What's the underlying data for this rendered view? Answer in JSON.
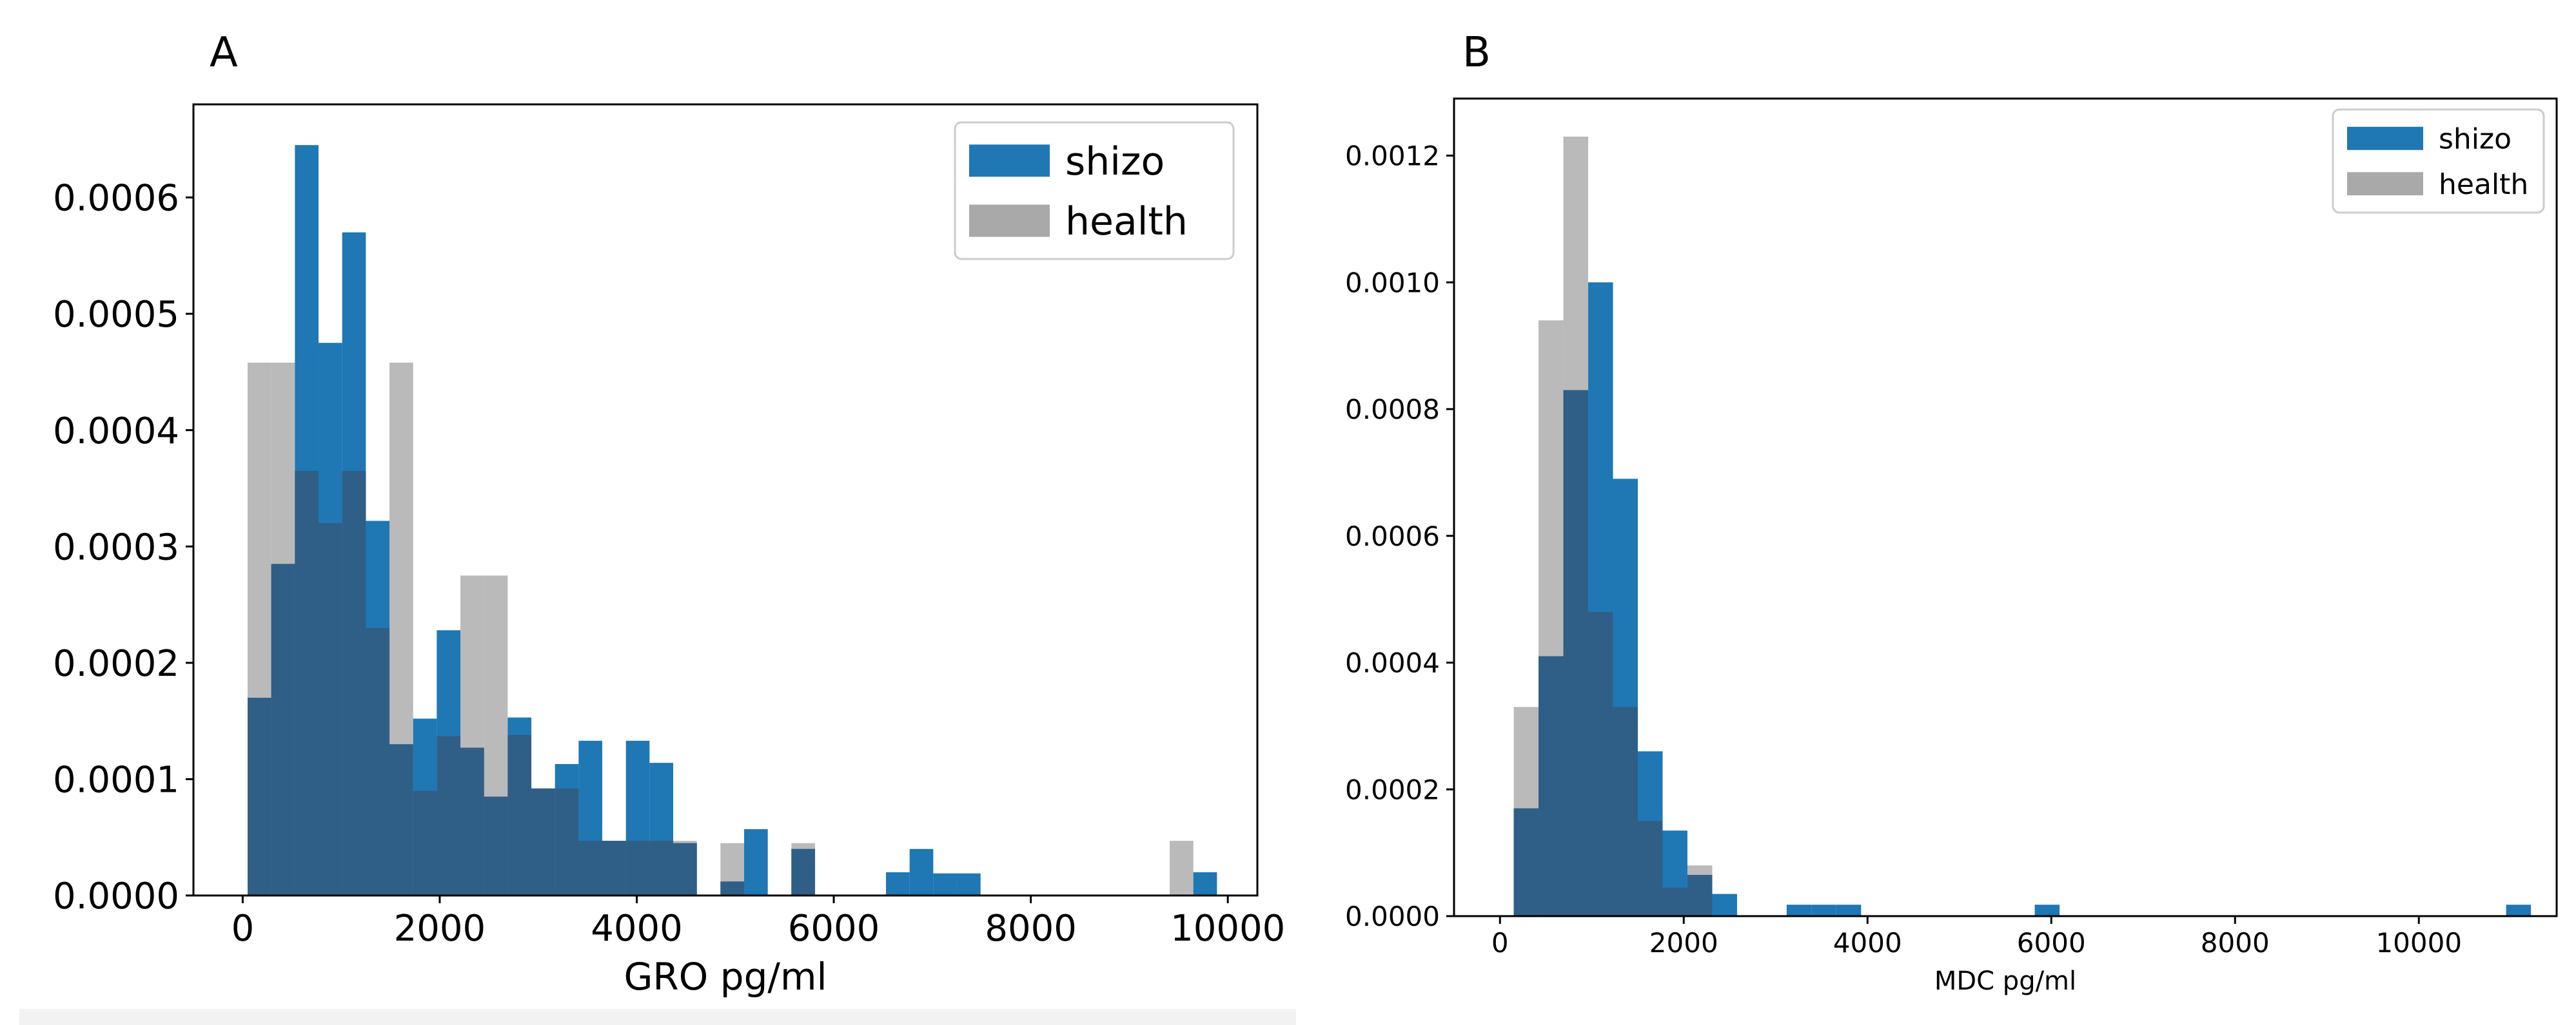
{
  "colors": {
    "shizo": "#1f77b4",
    "health": "#a9a9a9",
    "overlap": "#2f5f86"
  },
  "chart_data": [
    {
      "panel_label": "A",
      "type": "bar",
      "xlabel": "GRO pg/ml",
      "ylabel": "",
      "xlim": [
        -500,
        10300
      ],
      "ylim": [
        0,
        0.00068
      ],
      "xticks": [
        0,
        2000,
        4000,
        6000,
        8000,
        10000
      ],
      "xtick_labels": [
        "0",
        "2000",
        "4000",
        "6000",
        "8000",
        "10000"
      ],
      "yticks": [
        0,
        0.0001,
        0.0002,
        0.0003,
        0.0004,
        0.0005,
        0.0006
      ],
      "ytick_labels": [
        "0.0000",
        "0.0001",
        "0.0002",
        "0.0003",
        "0.0004",
        "0.0005",
        "0.0006"
      ],
      "legend": {
        "placement": "upper right",
        "entries": [
          "shizo",
          "health"
        ]
      },
      "bin_edges": [
        50,
        290,
        530,
        770,
        1010,
        1250,
        1490,
        1730,
        1970,
        2210,
        2450,
        2690,
        2930,
        3170,
        3410,
        3650,
        3890,
        4130,
        4370,
        4610,
        4850,
        5090,
        5330,
        5570,
        5810,
        6050,
        6290,
        6530,
        6770,
        7010,
        7250,
        7490,
        7730,
        7970,
        8210,
        8450,
        8690,
        8930,
        9170,
        9410,
        9650,
        9890
      ],
      "series": [
        {
          "name": "shizo",
          "values": [
            0.00017,
            0.000285,
            0.000645,
            0.000475,
            0.00057,
            0.000322,
            0.00013,
            0.000152,
            0.000228,
            0.000127,
            8.5e-05,
            0.000153,
            9.2e-05,
            0.000113,
            0.000133,
            4.7e-05,
            0.000133,
            0.000114,
            4.5e-05,
            0,
            1.2e-05,
            5.7e-05,
            0,
            4e-05,
            0,
            0,
            0,
            2e-05,
            4e-05,
            1.9e-05,
            1.9e-05,
            0,
            0,
            0,
            0,
            0,
            0,
            0,
            0,
            0,
            2e-05
          ]
        },
        {
          "name": "health",
          "values": [
            0.000458,
            0.000458,
            0.000365,
            0.00032,
            0.000365,
            0.00023,
            0.000458,
            9e-05,
            0.000137,
            0.000275,
            0.000275,
            0.000138,
            9.2e-05,
            9.2e-05,
            4.7e-05,
            4.7e-05,
            4.7e-05,
            4.7e-05,
            4.7e-05,
            0,
            4.5e-05,
            0,
            0,
            4.5e-05,
            0,
            0,
            0,
            0,
            0,
            0,
            0,
            0,
            0,
            0,
            0,
            0,
            0,
            0,
            0,
            4.7e-05,
            0
          ]
        }
      ]
    },
    {
      "panel_label": "B",
      "type": "bar",
      "xlabel": "MDC pg/ml",
      "ylabel": "",
      "xlim": [
        -500,
        11500
      ],
      "ylim": [
        0,
        0.00129
      ],
      "xticks": [
        0,
        2000,
        4000,
        6000,
        8000,
        10000
      ],
      "xtick_labels": [
        "0",
        "2000",
        "4000",
        "6000",
        "8000",
        "10000"
      ],
      "yticks": [
        0,
        0.0002,
        0.0004,
        0.0006,
        0.0008,
        0.001,
        0.0012
      ],
      "ytick_labels": [
        "0.0000",
        "0.0002",
        "0.0004",
        "0.0006",
        "0.0008",
        "0.0010",
        "0.0012"
      ],
      "legend": {
        "placement": "upper right",
        "entries": [
          "shizo",
          "health"
        ]
      },
      "bin_edges": [
        150,
        420,
        690,
        960,
        1230,
        1500,
        1770,
        2040,
        2310,
        2580,
        2850,
        3120,
        3390,
        3660,
        3930,
        4200,
        4470,
        4740,
        5010,
        5280,
        5550,
        5820,
        6090,
        6360,
        6630,
        6900,
        7170,
        7440,
        7710,
        7980,
        8250,
        8520,
        8790,
        9060,
        9330,
        9600,
        9870,
        10140,
        10410,
        10680,
        10950,
        11220
      ],
      "series": [
        {
          "name": "shizo",
          "values": [
            0.00017,
            0.00041,
            0.00083,
            0.001,
            0.00069,
            0.00026,
            0.000135,
            6.5e-05,
            3.5e-05,
            0,
            0,
            1.8e-05,
            1.8e-05,
            1.8e-05,
            0,
            0,
            0,
            0,
            0,
            0,
            0,
            1.8e-05,
            0,
            0,
            0,
            0,
            0,
            0,
            0,
            0,
            0,
            0,
            0,
            0,
            0,
            0,
            0,
            0,
            0,
            0,
            1.8e-05
          ]
        },
        {
          "name": "health",
          "values": [
            0.00033,
            0.00094,
            0.00123,
            0.00048,
            0.00033,
            0.00015,
            4.5e-05,
            8e-05,
            0,
            0,
            0,
            0,
            0,
            0,
            0,
            0,
            0,
            0,
            0,
            0,
            0,
            0,
            0,
            0,
            0,
            0,
            0,
            0,
            0,
            0,
            0,
            0,
            0,
            0,
            0,
            0,
            0,
            0,
            0,
            0,
            0
          ]
        }
      ]
    }
  ]
}
